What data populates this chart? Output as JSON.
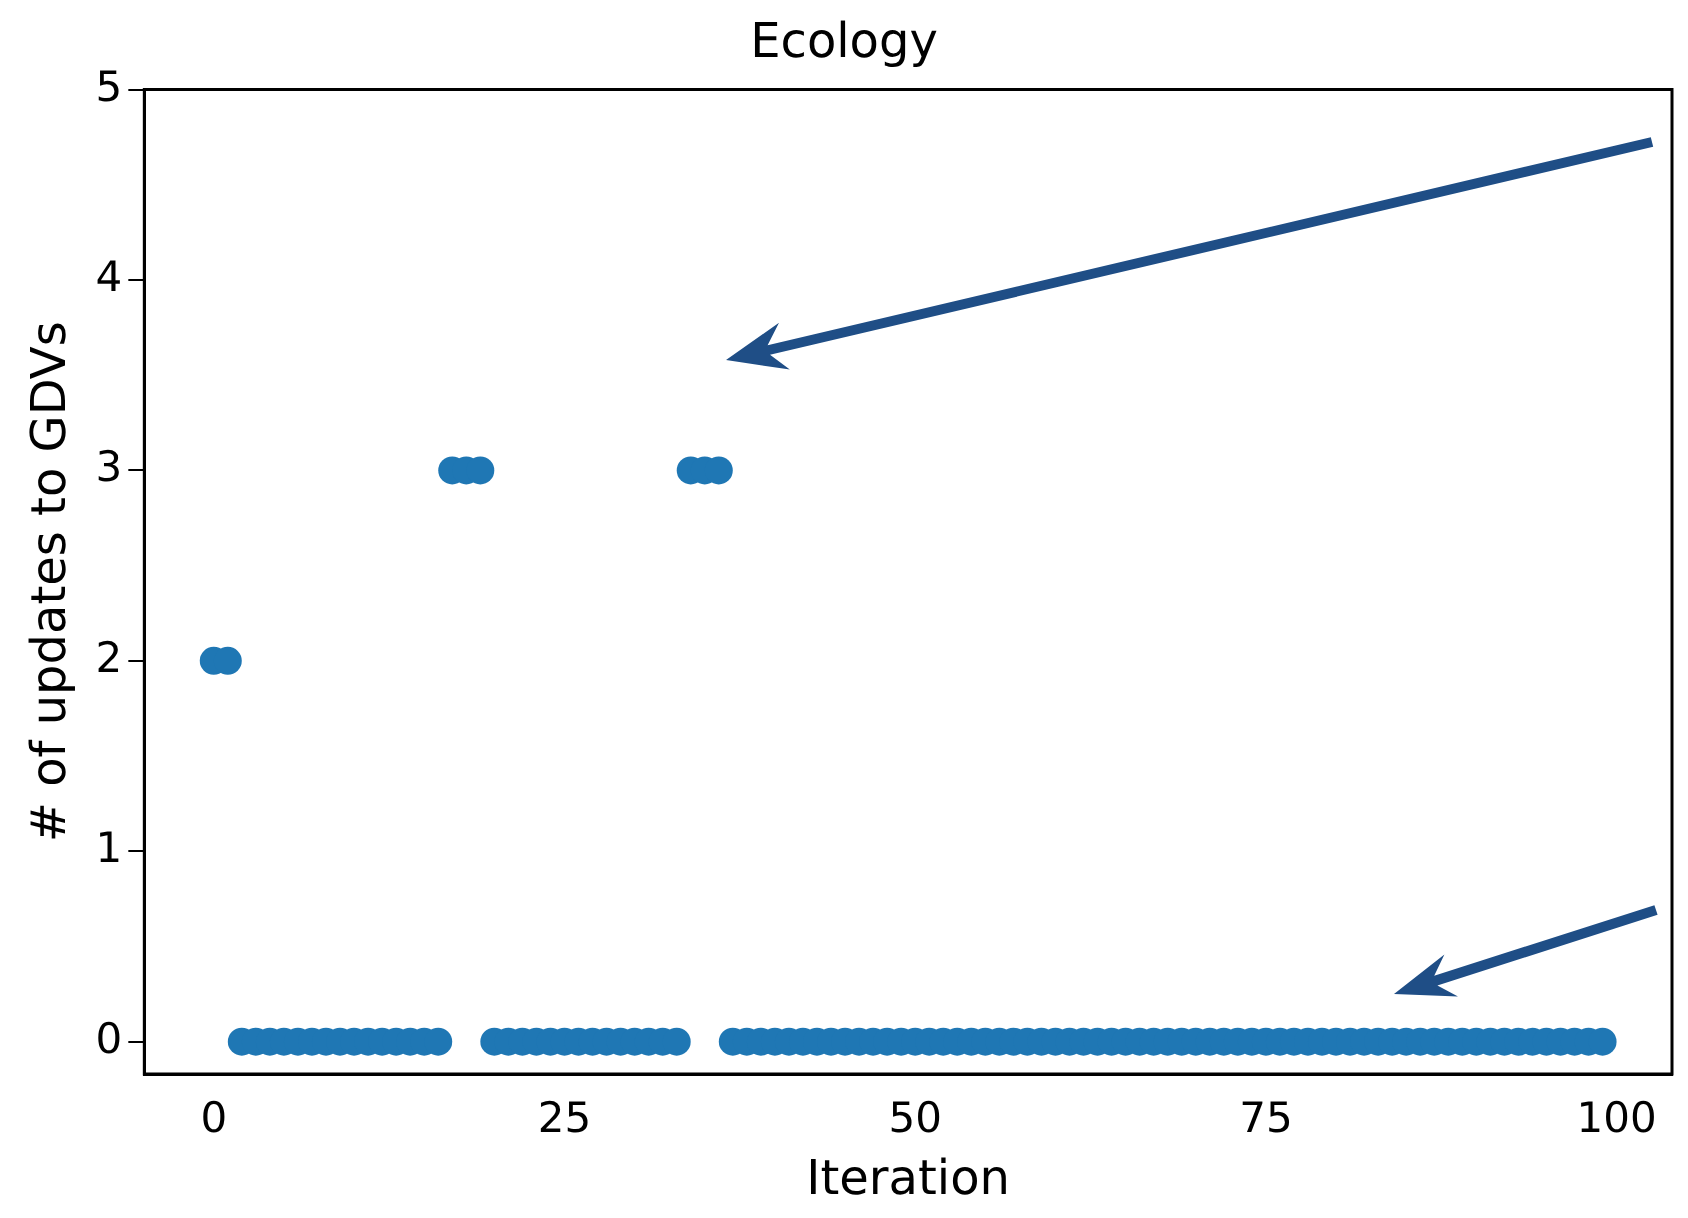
{
  "chart_data": {
    "type": "scatter",
    "title": "Ecology",
    "xlabel": "Iteration",
    "ylabel": "# of updates to GDVs",
    "x": [
      0,
      1,
      2,
      3,
      4,
      5,
      6,
      7,
      8,
      9,
      10,
      11,
      12,
      13,
      14,
      15,
      16,
      17,
      18,
      19,
      20,
      21,
      22,
      23,
      24,
      25,
      26,
      27,
      28,
      29,
      30,
      31,
      32,
      33,
      34,
      35,
      36,
      37,
      38,
      39,
      40,
      41,
      42,
      43,
      44,
      45,
      46,
      47,
      48,
      49,
      50,
      51,
      52,
      53,
      54,
      55,
      56,
      57,
      58,
      59,
      60,
      61,
      62,
      63,
      64,
      65,
      66,
      67,
      68,
      69,
      70,
      71,
      72,
      73,
      74,
      75,
      76,
      77,
      78,
      79,
      80,
      81,
      82,
      83,
      84,
      85,
      86,
      87,
      88,
      89,
      90,
      91,
      92,
      93,
      94,
      95,
      96,
      97,
      98,
      99
    ],
    "series": [
      {
        "color": "#1f77b4",
        "values": [
          2,
          2,
          0,
          0,
          0,
          0,
          0,
          0,
          0,
          0,
          0,
          0,
          0,
          0,
          0,
          0,
          0,
          3,
          3,
          3,
          0,
          0,
          0,
          0,
          0,
          0,
          0,
          0,
          0,
          0,
          0,
          0,
          0,
          0,
          3,
          3,
          3,
          0,
          0,
          0,
          0,
          0,
          0,
          0,
          0,
          0,
          0,
          0,
          0,
          0,
          0,
          0,
          0,
          0,
          0,
          0,
          0,
          0,
          0,
          0,
          0,
          0,
          0,
          0,
          0,
          0,
          0,
          0,
          0,
          0,
          0,
          0,
          0,
          0,
          0,
          0,
          0,
          0,
          0,
          0,
          0,
          0,
          0,
          0,
          0,
          0,
          0,
          0,
          0,
          0,
          0,
          0,
          0,
          0,
          0,
          0,
          0,
          0,
          0,
          0
        ]
      }
    ],
    "xlim": [
      -4.95,
      103.95
    ],
    "xticks": [
      0,
      25,
      50,
      75,
      100
    ],
    "ylim": [
      -0.17,
      5
    ],
    "yticks": [
      0,
      1,
      2,
      3,
      4,
      5
    ],
    "grid": false,
    "legend": false,
    "marker": "circle"
  }
}
